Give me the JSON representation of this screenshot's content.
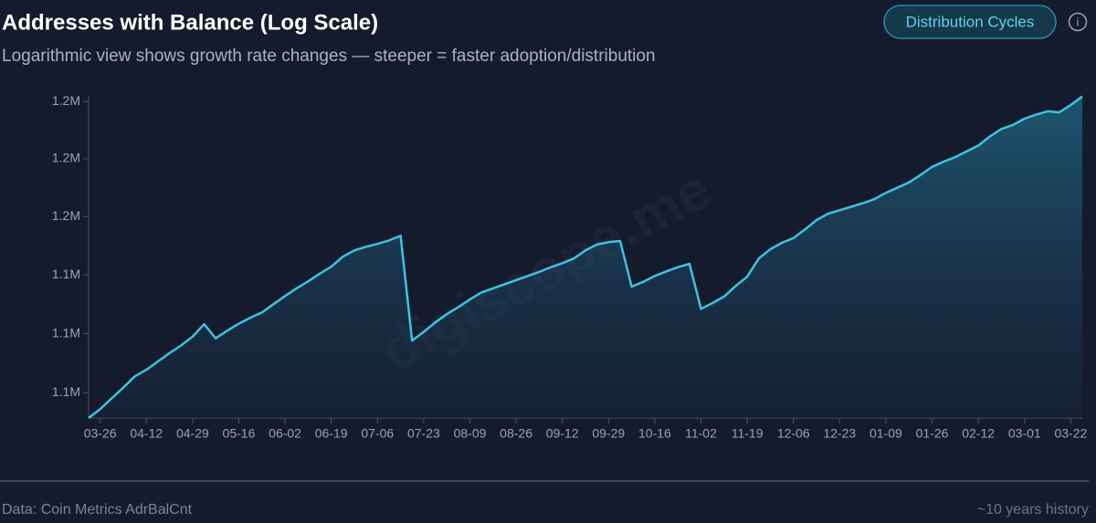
{
  "header": {
    "title": "Addresses with Balance (Log Scale)",
    "subtitle": "Logarithmic view shows growth rate changes — steeper = faster adoption/distribution",
    "button": "Distribution Cycles",
    "info": "i"
  },
  "chart_data": {
    "type": "line",
    "log_scale": true,
    "grid": false,
    "watermark": "digiscope.me",
    "categories": [
      null,
      "03-26",
      null,
      null,
      null,
      "04-12",
      null,
      null,
      null,
      "04-29",
      null,
      null,
      null,
      "05-16",
      null,
      null,
      null,
      "06-02",
      null,
      null,
      null,
      "06-19",
      null,
      null,
      null,
      "07-06",
      null,
      null,
      null,
      "07-23",
      null,
      null,
      null,
      "08-09",
      null,
      null,
      null,
      "08-26",
      null,
      null,
      null,
      "09-12",
      null,
      null,
      null,
      "09-29",
      null,
      null,
      null,
      "10-16",
      null,
      null,
      null,
      "11-02",
      null,
      null,
      null,
      "11-19",
      null,
      null,
      null,
      "12-06",
      null,
      null,
      null,
      "12-23",
      null,
      null,
      null,
      "01-09",
      null,
      null,
      null,
      "01-26",
      null,
      null,
      null,
      "02-12",
      null,
      null,
      null,
      "03-01",
      null,
      null,
      null,
      "03-22",
      null
    ],
    "series": [
      {
        "color": "#3ec3e0",
        "values": [
          1115800,
          1117300,
          1119100,
          1120900,
          1122800,
          1123900,
          1125300,
          1126700,
          1128000,
          1129500,
          1131600,
          1129200,
          1130500,
          1131700,
          1132700,
          1133600,
          1135000,
          1136400,
          1137700,
          1138900,
          1140200,
          1141400,
          1143100,
          1144200,
          1144800,
          1145300,
          1145900,
          1146700,
          1128800,
          1130300,
          1131900,
          1133300,
          1134500,
          1135800,
          1137000,
          1137700,
          1138400,
          1139100,
          1139800,
          1140500,
          1141300,
          1142000,
          1142800,
          1144200,
          1145200,
          1145600,
          1145800,
          1138000,
          1138800,
          1139800,
          1140600,
          1141300,
          1141900,
          1134200,
          1135200,
          1136300,
          1138100,
          1139700,
          1142800,
          1144400,
          1145500,
          1146300,
          1147800,
          1149400,
          1150500,
          1151100,
          1151700,
          1152300,
          1153000,
          1154100,
          1155000,
          1155900,
          1157200,
          1158600,
          1159500,
          1160300,
          1161300,
          1162300,
          1163900,
          1165200,
          1165900,
          1167000,
          1167700,
          1168300,
          1168100,
          1169400,
          1170900
        ]
      }
    ],
    "ylim": [
      1115800,
      1171000
    ],
    "yticks": [
      {
        "value": 1120000,
        "label": "1.1M"
      },
      {
        "value": 1130000,
        "label": "1.1M"
      },
      {
        "value": 1140000,
        "label": "1.1M"
      },
      {
        "value": 1150000,
        "label": "1.2M"
      },
      {
        "value": 1160000,
        "label": "1.2M"
      },
      {
        "value": 1170000,
        "label": "1.2M"
      }
    ]
  },
  "footer": {
    "source": "Data: Coin Metrics AdrBalCnt",
    "history": "~10 years history"
  }
}
